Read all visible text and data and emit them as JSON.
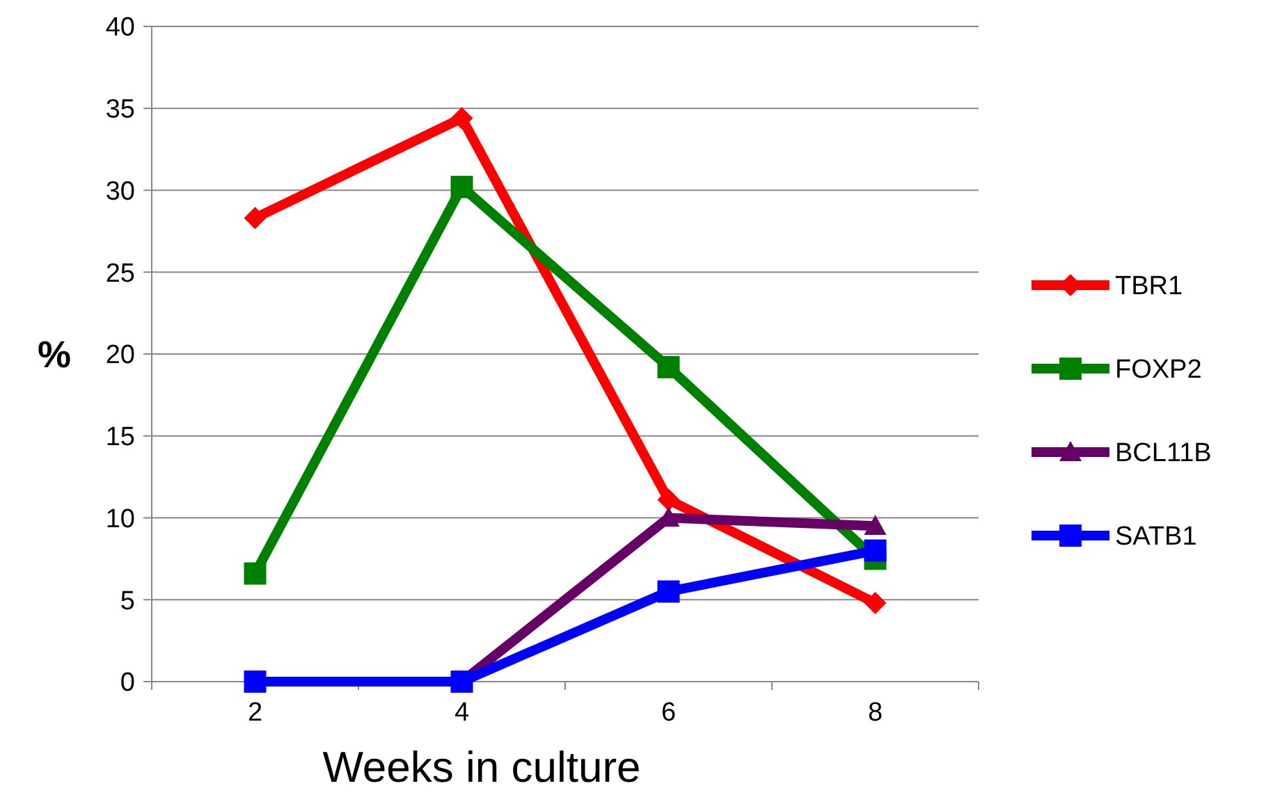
{
  "chart_data": {
    "type": "line",
    "xlabel": "Weeks in culture",
    "ylabel": "%",
    "categories": [
      "2",
      "4",
      "6",
      "8"
    ],
    "series": [
      {
        "name": "TBR1",
        "color": "#ff0000",
        "marker": "diamond",
        "values": [
          28.3,
          34.4,
          11.1,
          4.8
        ]
      },
      {
        "name": "FOXP2",
        "color": "#008000",
        "marker": "square",
        "values": [
          6.6,
          30.2,
          19.2,
          7.5
        ]
      },
      {
        "name": "BCL11B",
        "color": "#660066",
        "marker": "triangle",
        "values": [
          null,
          0,
          10.0,
          9.5
        ]
      },
      {
        "name": "SATB1",
        "color": "#0000ff",
        "marker": "square",
        "values": [
          0,
          0,
          5.5,
          8.0
        ]
      }
    ],
    "ylim": [
      0,
      40
    ],
    "yticks": [
      0,
      5,
      10,
      15,
      20,
      25,
      30,
      35,
      40
    ],
    "grid": "y",
    "legend": "right"
  }
}
